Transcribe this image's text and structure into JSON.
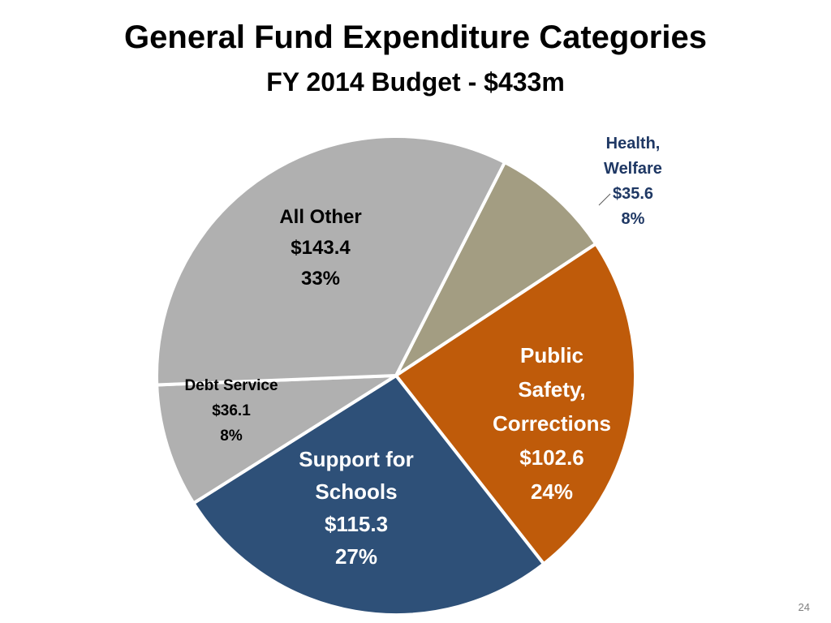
{
  "slide": {
    "title": "General Fund Expenditure Categories",
    "subtitle": "FY 2014 Budget - $433m",
    "page_number": "24"
  },
  "chart_data": {
    "type": "pie",
    "title": "General Fund Expenditure Categories",
    "subtitle": "FY 2014 Budget - $433m",
    "units": "$m",
    "slices": [
      {
        "name": "Health, Welfare",
        "value": 35.6,
        "percent": 8,
        "color": "#a39d82",
        "label_color": "#1f3864",
        "label_lines": [
          "Health,",
          "Welfare",
          "$35.6",
          "8%"
        ]
      },
      {
        "name": "Public Safety, Corrections",
        "value": 102.6,
        "percent": 24,
        "color": "#bf5b0a",
        "label_color": "#ffffff",
        "label_lines": [
          "Public",
          "Safety,",
          "Corrections",
          "$102.6",
          "24%"
        ]
      },
      {
        "name": "Support for Schools",
        "value": 115.3,
        "percent": 27,
        "color": "#2e5078",
        "label_color": "#ffffff",
        "label_lines": [
          "Support for",
          "Schools",
          "$115.3",
          "27%"
        ]
      },
      {
        "name": "Debt Service",
        "value": 36.1,
        "percent": 8,
        "color": "#b0b0b0",
        "label_color": "#000000",
        "label_lines": [
          "Debt Service",
          "$36.1",
          "8%"
        ]
      },
      {
        "name": "All Other",
        "value": 143.4,
        "percent": 33,
        "color": "#b0b0b0",
        "label_color": "#000000",
        "label_lines": [
          "All Other",
          "$143.4",
          "33%"
        ]
      }
    ],
    "legend": "none",
    "label_placement": "on-slice"
  }
}
